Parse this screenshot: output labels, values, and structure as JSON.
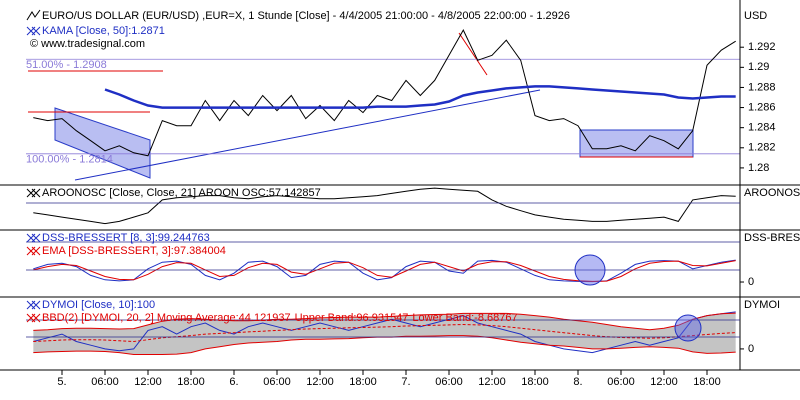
{
  "chart_data": [
    {
      "type": "line",
      "title": "EURO/US DOLLAR (EUR/USD) ,EUR=X, 1 Stunde [Close] - 4/4/2005 21:00:00 - 4/8/2005 22:00:00 - 1.2926",
      "subtitle": "© www.tradesignal.com",
      "y_label": "USD",
      "categories": [
        null,
        null,
        "5.",
        null,
        null,
        "06:00",
        null,
        null,
        "12:00",
        null,
        null,
        "18:00",
        null,
        null,
        "6.",
        null,
        null,
        "06:00",
        null,
        null,
        "12:00",
        null,
        null,
        "18:00",
        null,
        null,
        "7.",
        null,
        null,
        "06:00",
        null,
        null,
        "12:00",
        null,
        null,
        "18:00",
        null,
        null,
        "8.",
        null,
        null,
        "06:00",
        null,
        null,
        "12:00",
        null,
        null,
        "18:00",
        null,
        null
      ],
      "series": [
        {
          "color": "#000000",
          "values": [
            1.285,
            1.2847,
            1.2849,
            1.2837,
            1.2827,
            1.2817,
            1.2822,
            1.2815,
            1.2812,
            1.2847,
            1.2842,
            1.2842,
            1.2867,
            1.2847,
            1.2867,
            1.2852,
            1.2872,
            1.2857,
            1.2872,
            1.2849,
            1.2862,
            1.2847,
            1.2867,
            1.2855,
            1.2872,
            1.2867,
            1.2887,
            1.2872,
            1.2887,
            1.2912,
            1.2937,
            1.2907,
            1.2912,
            1.2927,
            1.2907,
            1.2852,
            1.2847,
            1.2849,
            1.2842,
            1.2819,
            1.2819,
            1.2822,
            1.2817,
            1.2832,
            1.2827,
            1.2819,
            1.2837,
            1.2902,
            1.2917,
            1.2926
          ]
        },
        {
          "name": "KAMA [Close, 50]:1.2871",
          "color": "#1f2fc4",
          "values": [
            null,
            null,
            null,
            null,
            null,
            1.2878,
            1.2873,
            1.2867,
            1.2862,
            1.286,
            1.286,
            1.286,
            1.286,
            1.286,
            1.286,
            1.286,
            1.286,
            1.286,
            1.286,
            1.286,
            1.286,
            1.286,
            1.286,
            1.286,
            1.2861,
            1.2861,
            1.2861,
            1.2862,
            1.2863,
            1.2866,
            1.2872,
            1.2875,
            1.2877,
            1.2879,
            1.288,
            1.2881,
            1.2881,
            1.288,
            1.2879,
            1.2878,
            1.2877,
            1.2876,
            1.2875,
            1.2874,
            1.2873,
            1.287,
            1.2869,
            1.287,
            1.2871,
            1.2871
          ]
        }
      ],
      "annotations": [
        {
          "label": "51.00% - 1.2908",
          "value": 1.2908
        },
        {
          "label": "100.00% - 1.2814",
          "value": 1.2814
        }
      ],
      "ylim": [
        1.2783,
        1.2957
      ],
      "yticks": [
        1.28,
        1.282,
        1.284,
        1.286,
        1.288,
        1.29,
        1.292
      ]
    },
    {
      "type": "line",
      "y_label": "AROONOSC",
      "series": [
        {
          "name": "AROONOSC [Close, Close, 21] AROON OSC:57.142857",
          "color": "#000000",
          "values": [
            -20,
            -30,
            -40,
            -50,
            -60,
            -70,
            -60,
            -40,
            -20,
            40,
            50,
            55,
            60,
            60,
            50,
            45,
            55,
            60,
            55,
            50,
            45,
            45,
            50,
            55,
            60,
            70,
            80,
            90,
            95,
            90,
            85,
            80,
            40,
            10,
            -10,
            -30,
            -40,
            -50,
            -55,
            -60,
            -60,
            -55,
            -50,
            -45,
            -40,
            -60,
            40,
            50,
            60,
            57.142857
          ]
        }
      ],
      "ylim": [
        -100,
        100
      ],
      "yticks": []
    },
    {
      "type": "line",
      "y_label": "DSS-BRESSI",
      "series": [
        {
          "name": "DSS-BRESSERT [8, 3]:99.244763",
          "color": "#1f2fc4",
          "values": [
            60,
            80,
            85,
            70,
            30,
            10,
            5,
            10,
            60,
            90,
            95,
            80,
            30,
            10,
            40,
            90,
            95,
            70,
            20,
            30,
            80,
            95,
            90,
            40,
            10,
            20,
            70,
            95,
            90,
            50,
            40,
            95,
            98,
            90,
            60,
            30,
            10,
            5,
            3,
            2,
            5,
            40,
            80,
            95,
            97,
            95,
            60,
            75,
            90,
            99.244763
          ]
        },
        {
          "name": "EMA [DSS-BRESSERT, 3]:97.384004",
          "color": "#e00000",
          "values": [
            55,
            70,
            80,
            75,
            50,
            25,
            12,
            10,
            35,
            70,
            88,
            85,
            55,
            25,
            30,
            65,
            85,
            80,
            45,
            35,
            60,
            85,
            90,
            65,
            30,
            22,
            50,
            80,
            90,
            70,
            50,
            80,
            92,
            92,
            75,
            50,
            25,
            12,
            6,
            3,
            4,
            25,
            60,
            85,
            93,
            95,
            75,
            73,
            85,
            97.384004
          ]
        }
      ],
      "ylim": [
        -68,
        227
      ],
      "yticks": [
        0
      ]
    },
    {
      "type": "line",
      "y_label": "DYMOI",
      "band_color": "#c4c4c4",
      "series": [
        {
          "name": "DYMOI [Close, 10]:100",
          "color": "#1f2fc4",
          "values": [
            20,
            30,
            40,
            20,
            10,
            0,
            -5,
            0,
            50,
            60,
            40,
            60,
            70,
            50,
            40,
            60,
            70,
            60,
            50,
            60,
            70,
            60,
            50,
            60,
            70,
            80,
            70,
            60,
            70,
            80,
            90,
            70,
            60,
            50,
            40,
            20,
            10,
            0,
            -5,
            -10,
            0,
            10,
            20,
            10,
            20,
            30,
            80,
            90,
            95,
            100
          ]
        },
        {
          "name": "BBD(2) [DYMOI, 20, 2] Moving Average:44.121937",
          "color": "#e00000",
          "values": [
            20,
            22,
            24,
            25,
            25,
            24,
            22,
            20,
            25,
            30,
            33,
            36,
            40,
            42,
            44,
            46,
            48,
            50,
            52,
            54,
            55,
            56,
            57,
            58,
            59,
            60,
            62,
            63,
            64,
            65,
            66,
            65,
            63,
            60,
            56,
            52,
            48,
            44,
            40,
            36,
            33,
            31,
            30,
            29,
            30,
            33,
            36,
            39,
            42,
            44.121937
          ]
        },
        {
          "name": "Upper Band:96.931547",
          "color": "#e00000",
          "values": [
            50,
            52,
            55,
            56,
            56,
            55,
            54,
            55,
            65,
            75,
            80,
            82,
            80,
            78,
            76,
            76,
            78,
            80,
            80,
            82,
            84,
            85,
            86,
            86,
            86,
            88,
            90,
            92,
            93,
            94,
            96,
            96,
            96,
            96,
            94,
            90,
            86,
            80,
            76,
            72,
            66,
            60,
            56,
            52,
            56,
            64,
            80,
            90,
            95,
            96.931547
          ]
        },
        {
          "name": "Lower Band:-8.68767",
          "color": "#e00000",
          "values": [
            -10,
            -8,
            -7,
            -6,
            -6,
            -7,
            -10,
            -15,
            -15,
            -15,
            -14,
            -10,
            0,
            6,
            12,
            16,
            18,
            20,
            24,
            26,
            26,
            27,
            28,
            30,
            32,
            32,
            34,
            34,
            35,
            36,
            36,
            34,
            30,
            24,
            18,
            14,
            10,
            8,
            4,
            0,
            0,
            2,
            4,
            6,
            4,
            2,
            -8,
            -12,
            -11,
            -8.68767
          ]
        }
      ],
      "ylim": [
        -57,
        135
      ],
      "yticks": [
        0
      ]
    }
  ]
}
